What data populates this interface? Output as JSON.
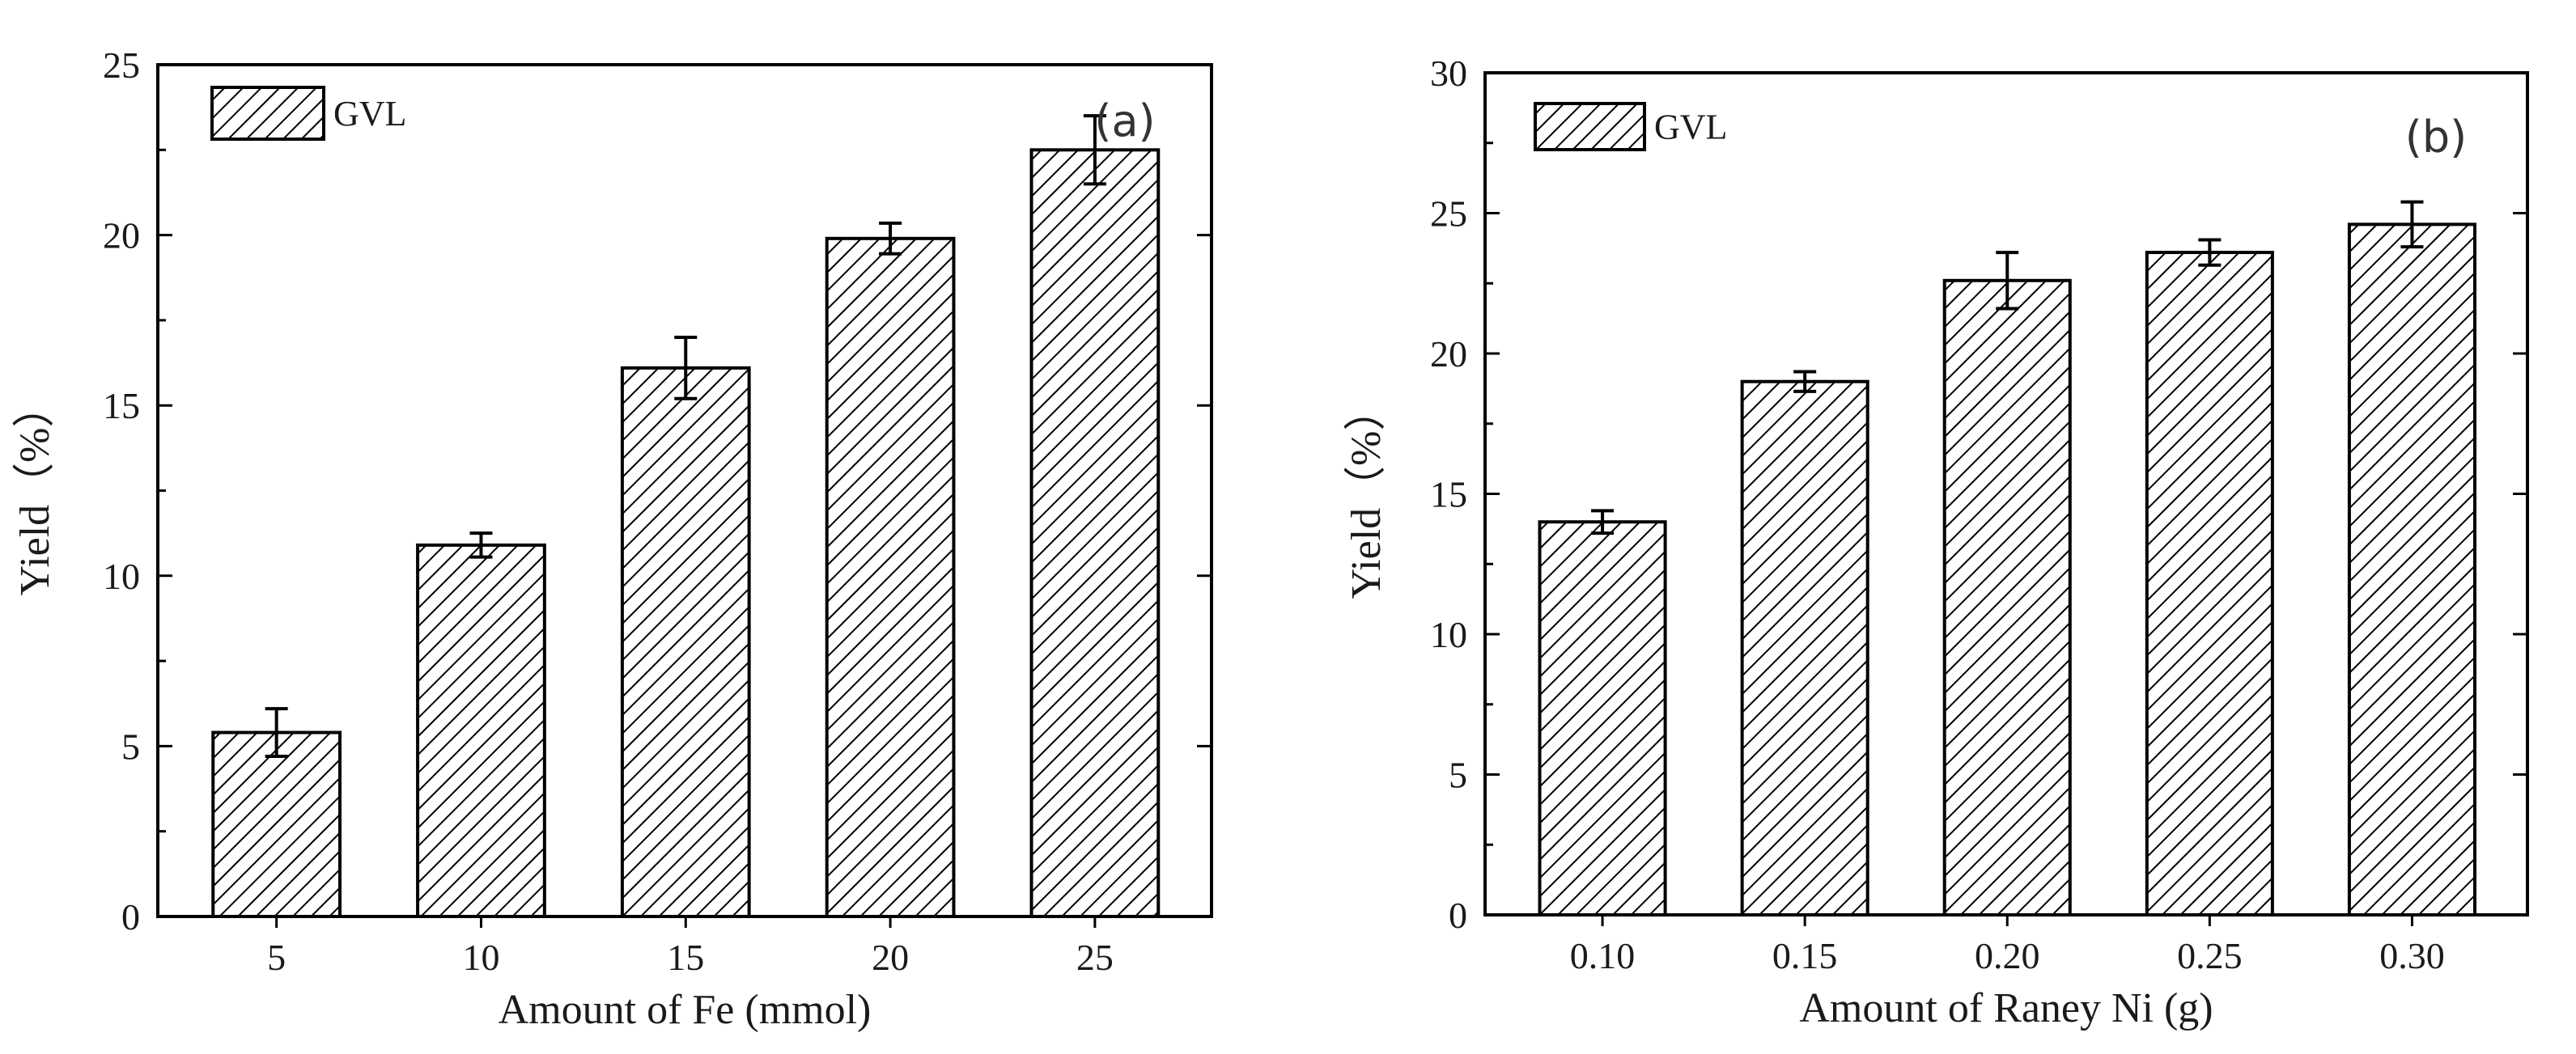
{
  "chart_data": [
    {
      "type": "bar",
      "panel_label": "(a)",
      "categories": [
        "5",
        "10",
        "15",
        "20",
        "25"
      ],
      "series": [
        {
          "name": "GVL",
          "values": [
            5.4,
            10.9,
            16.1,
            19.9,
            22.5
          ],
          "errors": [
            0.7,
            0.35,
            0.9,
            0.45,
            1.0
          ]
        }
      ],
      "xlabel": "Amount of Fe (mmol)",
      "ylabel": "Yield（%）",
      "ylim": [
        0,
        25
      ],
      "yticks": [
        "0",
        "5",
        "10",
        "15",
        "20",
        "25"
      ],
      "grid": false,
      "legend": "top-left",
      "bar_fill": "hatched",
      "bar_color": "#000000"
    },
    {
      "type": "bar",
      "panel_label": "(b)",
      "categories": [
        "0.10",
        "0.15",
        "0.20",
        "0.25",
        "0.30"
      ],
      "series": [
        {
          "name": "GVL",
          "values": [
            14.0,
            19.0,
            22.6,
            23.6,
            24.6
          ],
          "errors": [
            0.4,
            0.35,
            1.0,
            0.45,
            0.8
          ]
        }
      ],
      "xlabel": "Amount of Raney Ni (g)",
      "ylabel": "Yield（%）",
      "ylim": [
        0,
        30
      ],
      "yticks": [
        "0",
        "5",
        "10",
        "15",
        "20",
        "25",
        "30"
      ],
      "grid": false,
      "legend": "top-left",
      "bar_fill": "hatched",
      "bar_color": "#000000"
    }
  ]
}
